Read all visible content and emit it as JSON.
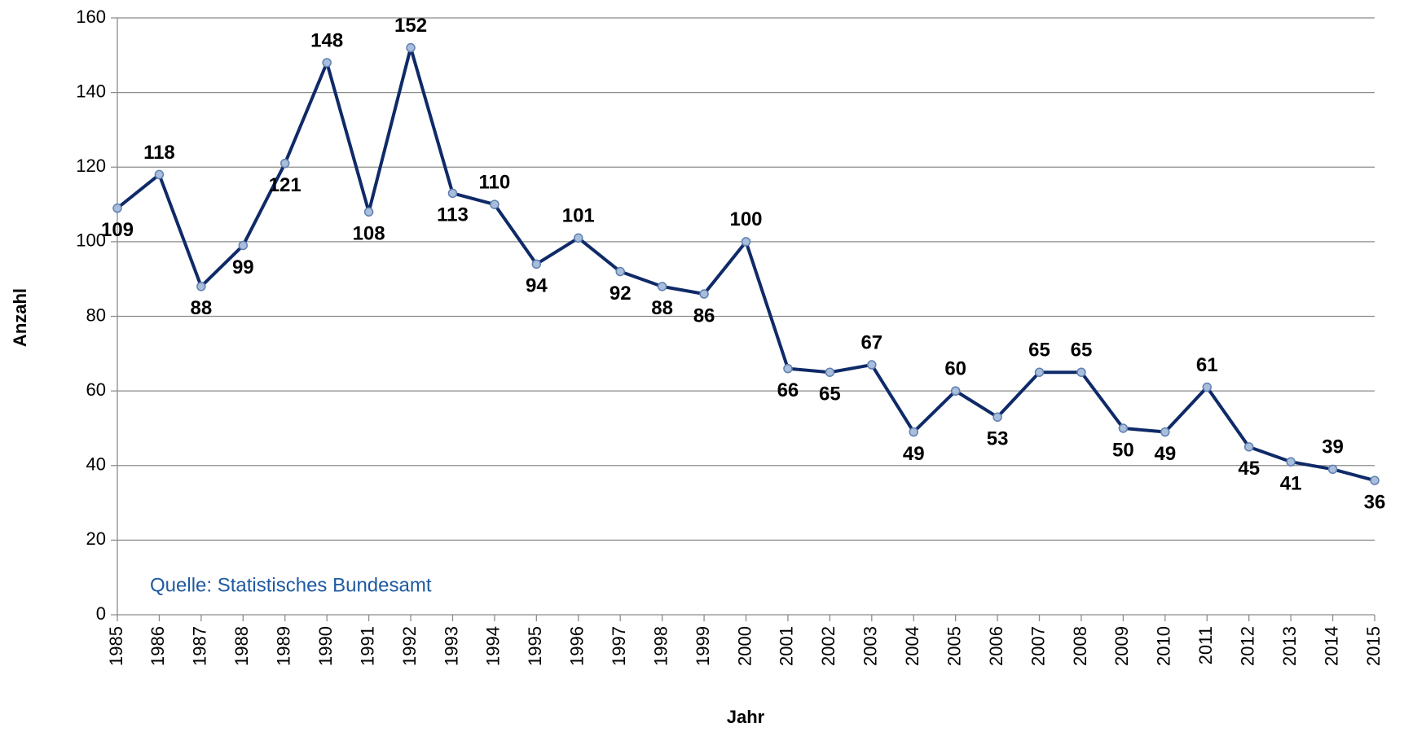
{
  "chart_data": {
    "type": "line",
    "x_label": "Jahr",
    "y_label": "Anzahl",
    "annotation": "Quelle: Statistisches Bundesamt",
    "categories": [
      "1985",
      "1986",
      "1987",
      "1988",
      "1989",
      "1990",
      "1991",
      "1992",
      "1993",
      "1994",
      "1995",
      "1996",
      "1997",
      "1998",
      "1999",
      "2000",
      "2001",
      "2002",
      "2003",
      "2004",
      "2005",
      "2006",
      "2007",
      "2008",
      "2009",
      "2010",
      "2011",
      "2012",
      "2013",
      "2014",
      "2015"
    ],
    "series": [
      {
        "name": "Anzahl",
        "color": "#0f2a68",
        "values": [
          109,
          118,
          88,
          99,
          121,
          148,
          108,
          152,
          113,
          110,
          94,
          101,
          92,
          88,
          86,
          100,
          66,
          65,
          67,
          49,
          60,
          53,
          65,
          65,
          50,
          49,
          61,
          45,
          41,
          39,
          36
        ]
      }
    ],
    "ylim": [
      0,
      160
    ],
    "yticks": [
      0,
      20,
      40,
      60,
      80,
      100,
      120,
      140,
      160
    ],
    "grid": true
  }
}
